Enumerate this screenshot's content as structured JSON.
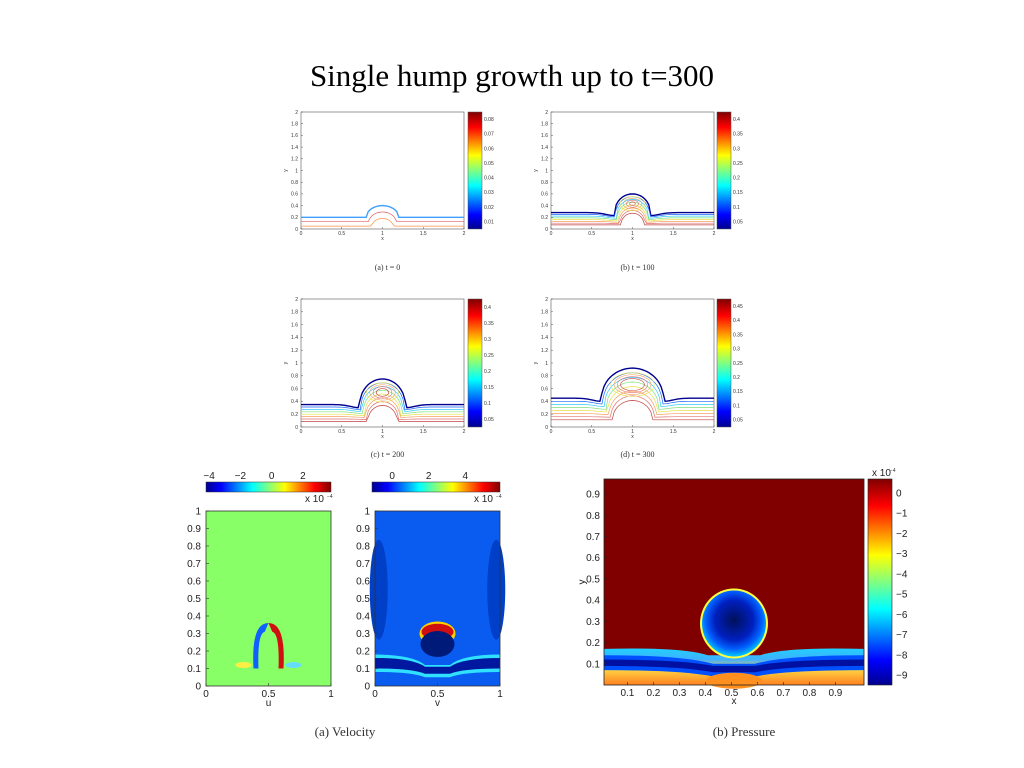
{
  "title": "Single hump growth up to t=300",
  "colors": {
    "jet": [
      "#00008f",
      "#0000ff",
      "#0080ff",
      "#00ffff",
      "#80ff80",
      "#ffff00",
      "#ff8000",
      "#ff0000",
      "#800000"
    ],
    "contours": [
      "#00008f",
      "#1a66ff",
      "#33ccff",
      "#7fe07f",
      "#e8e04a",
      "#f4a060",
      "#e07070",
      "#c04040"
    ]
  },
  "chart_data": [
    {
      "type": "heatmap",
      "caption": "(a) t = 0",
      "xlabel": "x",
      "ylabel": "y",
      "xlim": [
        0,
        2
      ],
      "ylim": [
        0,
        2
      ],
      "xticks": [
        "0",
        "0.5",
        "1",
        "1.5",
        "2"
      ],
      "yticks": [
        "0",
        "0.2",
        "0.4",
        "0.6",
        "0.8",
        "1",
        "1.2",
        "1.4",
        "1.6",
        "1.8",
        "2"
      ],
      "colorbar": [
        "0.01",
        "0.02",
        "0.03",
        "0.04",
        "0.05",
        "0.06",
        "0.07",
        "0.08"
      ],
      "interface": {
        "base_level": 0.2,
        "hump_center": 1,
        "hump_height": 0.4,
        "hump_halfwidth": 0.2
      }
    },
    {
      "type": "heatmap",
      "caption": "(b) t = 100",
      "xlabel": "x",
      "ylabel": "y",
      "xlim": [
        0,
        2
      ],
      "ylim": [
        0,
        2
      ],
      "xticks": [
        "0",
        "0.5",
        "1",
        "1.5",
        "2"
      ],
      "yticks": [
        "0",
        "0.2",
        "0.4",
        "0.6",
        "0.8",
        "1",
        "1.2",
        "1.4",
        "1.6",
        "1.8",
        "2"
      ],
      "colorbar": [
        "0.05",
        "0.1",
        "0.15",
        "0.2",
        "0.25",
        "0.3",
        "0.35",
        "0.4"
      ],
      "interface": {
        "base_level": 0.28,
        "hump_center": 1,
        "hump_height": 0.6,
        "hump_halfwidth": 0.22
      }
    },
    {
      "type": "heatmap",
      "caption": "(c) t = 200",
      "xlabel": "x",
      "ylabel": "y",
      "xlim": [
        0,
        2
      ],
      "ylim": [
        0,
        2
      ],
      "xticks": [
        "0",
        "0.5",
        "1",
        "1.5",
        "2"
      ],
      "yticks": [
        "0",
        "0.2",
        "0.4",
        "0.6",
        "0.8",
        "1",
        "1.2",
        "1.4",
        "1.6",
        "1.8",
        "2"
      ],
      "colorbar": [
        "0.05",
        "0.1",
        "0.15",
        "0.2",
        "0.25",
        "0.3",
        "0.35",
        "0.4"
      ],
      "interface": {
        "base_level": 0.35,
        "hump_center": 1,
        "hump_height": 0.75,
        "hump_halfwidth": 0.28
      }
    },
    {
      "type": "heatmap",
      "caption": "(d) t = 300",
      "xlabel": "x",
      "ylabel": "y",
      "xlim": [
        0,
        2
      ],
      "ylim": [
        0,
        2
      ],
      "xticks": [
        "0",
        "0.5",
        "1",
        "1.5",
        "2"
      ],
      "yticks": [
        "0",
        "0.2",
        "0.4",
        "0.6",
        "0.8",
        "1",
        "1.2",
        "1.4",
        "1.6",
        "1.8",
        "2"
      ],
      "colorbar": [
        "0.05",
        "0.1",
        "0.15",
        "0.2",
        "0.25",
        "0.3",
        "0.35",
        "0.4",
        "0.45"
      ],
      "interface": {
        "base_level": 0.45,
        "hump_center": 1,
        "hump_height": 0.92,
        "hump_halfwidth": 0.38
      }
    },
    {
      "type": "heatmap",
      "caption": "(a) Velocity",
      "panels": [
        {
          "xlabel": "u",
          "colorbar_ticks": [
            "−4",
            "−2",
            "0",
            "2"
          ],
          "colorbar_exponent": "x 10",
          "xticks": [
            "0",
            "0.5",
            "1"
          ],
          "yticks": [
            "0",
            "0.1",
            "0.2",
            "0.3",
            "0.4",
            "0.5",
            "0.6",
            "0.7",
            "0.8",
            "0.9",
            "1"
          ]
        },
        {
          "xlabel": "v",
          "colorbar_ticks": [
            "0",
            "2",
            "4"
          ],
          "colorbar_exponent": "x 10",
          "xticks": [
            "0",
            "0.5",
            "1"
          ],
          "yticks": [
            "0",
            "0.1",
            "0.2",
            "0.3",
            "0.4",
            "0.5",
            "0.6",
            "0.7",
            "0.8",
            "0.9",
            "1"
          ]
        }
      ],
      "exponent_power": "−4"
    },
    {
      "type": "heatmap",
      "caption": "(b) Pressure",
      "xlabel": "x",
      "ylabel": "y",
      "xticks": [
        "0.1",
        "0.2",
        "0.3",
        "0.4",
        "0.5",
        "0.6",
        "0.7",
        "0.8",
        "0.9"
      ],
      "yticks": [
        "0.1",
        "0.2",
        "0.3",
        "0.4",
        "0.5",
        "0.6",
        "0.7",
        "0.8",
        "0.9"
      ],
      "colorbar_ticks": [
        "0",
        "−1",
        "−2",
        "−3",
        "−4",
        "−5",
        "−6",
        "−7",
        "−8",
        "−9"
      ],
      "colorbar_exponent": "x 10",
      "exponent_power": "−4"
    }
  ]
}
